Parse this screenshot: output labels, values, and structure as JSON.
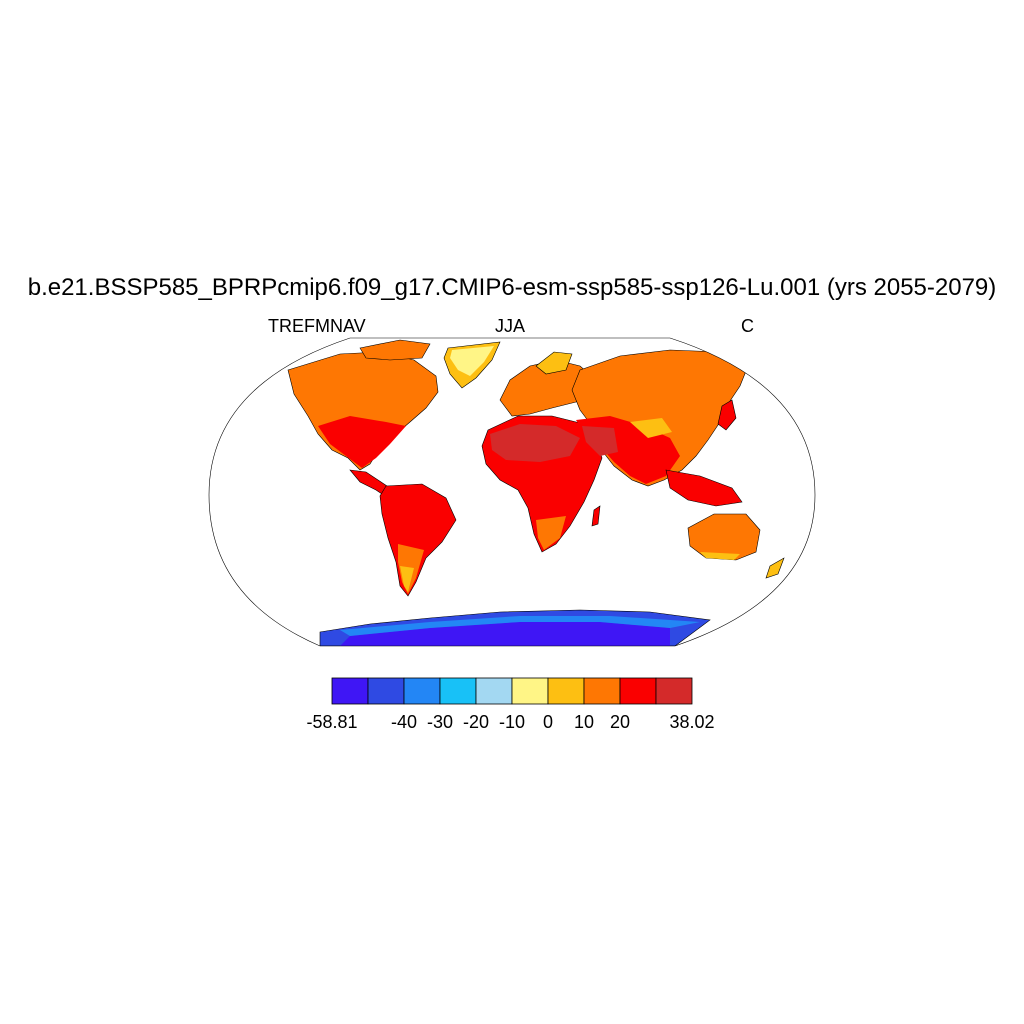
{
  "title": "b.e21.BSSP585_BPRPcmip6.f09_g17.CMIP6-esm-ssp585-ssp126-Lu.001 (yrs 2055-2079)",
  "subtitle_left": "TREFMNAV",
  "subtitle_center": "JJA",
  "subtitle_right": "C",
  "colorbar": {
    "colors": [
      "#3f16f5",
      "#2f4ae3",
      "#2386f5",
      "#18c1f7",
      "#a3d8f2",
      "#fff586",
      "#fdbf12",
      "#fe7703",
      "#fa0000",
      "#d42a2a"
    ],
    "labels": [
      "-58.81",
      "-40",
      "-30",
      "-20",
      "-10",
      "0",
      "10",
      "20",
      "38.02"
    ]
  },
  "map_colors": {
    "ocean": "#ffffff",
    "coast": "#000000"
  }
}
